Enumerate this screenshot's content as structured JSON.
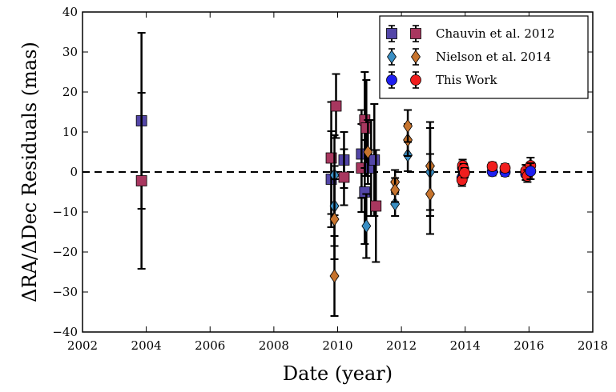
{
  "chart_data": {
    "type": "scatter",
    "title": "",
    "xlabel": "Date (year)",
    "ylabel": "ΔRA/ΔDec Residuals (mas)",
    "xlim": [
      2002,
      2018
    ],
    "ylim": [
      -40,
      40
    ],
    "xticks": [
      "2002",
      "2004",
      "2006",
      "2008",
      "2010",
      "2012",
      "2014",
      "2016",
      "2018"
    ],
    "yticks": [
      "40",
      "30",
      "20",
      "10",
      "0",
      "−10",
      "−20",
      "−30",
      "−40"
    ],
    "grid": false,
    "zero_line": {
      "y": 0,
      "style": "dashed",
      "color": "#000000"
    },
    "legend_position": "top-right",
    "series": [
      {
        "name": "Chauvin et al. 2012",
        "marker": "square",
        "colors": [
          "#5346a8",
          "#a8375f"
        ],
        "points": [
          {
            "x": 2003.85,
            "y": 12.8,
            "err": 22.0,
            "c": 0
          },
          {
            "x": 2003.85,
            "y": -2.2,
            "err": 22.0,
            "c": 1
          },
          {
            "x": 2009.8,
            "y": -1.8,
            "err": 12.0,
            "c": 0
          },
          {
            "x": 2009.8,
            "y": 3.5,
            "err": 14.0,
            "c": 1
          },
          {
            "x": 2009.95,
            "y": 16.5,
            "err": 8.0,
            "c": 1
          },
          {
            "x": 2010.2,
            "y": 3.0,
            "err": 7.0,
            "c": 0
          },
          {
            "x": 2010.2,
            "y": -1.3,
            "err": 7.0,
            "c": 1
          },
          {
            "x": 2010.75,
            "y": 4.5,
            "err": 11.0,
            "c": 0
          },
          {
            "x": 2010.75,
            "y": 1.0,
            "err": 11.0,
            "c": 1
          },
          {
            "x": 2010.85,
            "y": -5.0,
            "err": 13.0,
            "c": 0
          },
          {
            "x": 2010.85,
            "y": 13.0,
            "err": 12.0,
            "c": 1
          },
          {
            "x": 2010.9,
            "y": 11.0,
            "err": 12.0,
            "c": 1
          },
          {
            "x": 2011.05,
            "y": 1.0,
            "err": 12.0,
            "c": 0
          },
          {
            "x": 2011.15,
            "y": 3.0,
            "err": 14.0,
            "c": 0
          },
          {
            "x": 2011.2,
            "y": -8.5,
            "err": 14.0,
            "c": 1
          }
        ]
      },
      {
        "name": "Nielson et al. 2014",
        "marker": "diamond",
        "colors": [
          "#3a8fc4",
          "#c7742e"
        ],
        "points": [
          {
            "x": 2009.9,
            "y": -0.8,
            "err": 10.0,
            "c": 0
          },
          {
            "x": 2009.9,
            "y": -8.5,
            "err": 10.0,
            "c": 0
          },
          {
            "x": 2009.9,
            "y": -11.8,
            "err": 10.0,
            "c": 1
          },
          {
            "x": 2009.9,
            "y": -26.0,
            "err": 10.0,
            "c": 1
          },
          {
            "x": 2010.9,
            "y": -13.5,
            "err": 8.0,
            "c": 0
          },
          {
            "x": 2010.95,
            "y": 5.0,
            "err": 8.0,
            "c": 1
          },
          {
            "x": 2011.8,
            "y": -8.0,
            "err": 3.0,
            "c": 0
          },
          {
            "x": 2011.8,
            "y": -2.5,
            "err": 3.0,
            "c": 1
          },
          {
            "x": 2011.8,
            "y": -4.5,
            "err": 3.0,
            "c": 1
          },
          {
            "x": 2012.2,
            "y": 4.2,
            "err": 4.0,
            "c": 0
          },
          {
            "x": 2012.2,
            "y": 8.0,
            "err": 4.0,
            "c": 1
          },
          {
            "x": 2012.2,
            "y": 11.5,
            "err": 4.0,
            "c": 1
          },
          {
            "x": 2012.9,
            "y": 0.0,
            "err": 11.0,
            "c": 0
          },
          {
            "x": 2012.9,
            "y": 1.5,
            "err": 11.0,
            "c": 1
          },
          {
            "x": 2012.9,
            "y": -5.5,
            "err": 10.0,
            "c": 1
          }
        ]
      },
      {
        "name": "This Work",
        "marker": "circle",
        "colors": [
          "#1e1ef0",
          "#f01e1e"
        ],
        "points": [
          {
            "x": 2013.9,
            "y": -1.5,
            "err": 1.5,
            "c": 0
          },
          {
            "x": 2013.92,
            "y": 1.0,
            "err": 1.5,
            "c": 0
          },
          {
            "x": 2013.95,
            "y": -0.5,
            "err": 1.2,
            "c": 0
          },
          {
            "x": 2013.9,
            "y": -2.0,
            "err": 1.5,
            "c": 1
          },
          {
            "x": 2013.92,
            "y": 1.6,
            "err": 1.5,
            "c": 1
          },
          {
            "x": 2013.95,
            "y": 0.8,
            "err": 1.2,
            "c": 1
          },
          {
            "x": 2013.98,
            "y": -0.2,
            "err": 1.2,
            "c": 1
          },
          {
            "x": 2014.85,
            "y": 0.1,
            "err": 1.0,
            "c": 0
          },
          {
            "x": 2014.85,
            "y": 1.4,
            "err": 1.0,
            "c": 1
          },
          {
            "x": 2015.25,
            "y": 0.0,
            "err": 1.0,
            "c": 0
          },
          {
            "x": 2015.25,
            "y": 1.0,
            "err": 1.0,
            "c": 1
          },
          {
            "x": 2015.9,
            "y": -0.5,
            "err": 1.5,
            "c": 0
          },
          {
            "x": 2015.9,
            "y": 0.3,
            "err": 1.5,
            "c": 1
          },
          {
            "x": 2015.95,
            "y": -1.0,
            "err": 1.5,
            "c": 1
          },
          {
            "x": 2016.05,
            "y": 1.6,
            "err": 2.0,
            "c": 1
          },
          {
            "x": 2016.05,
            "y": 0.2,
            "err": 2.0,
            "c": 0
          }
        ]
      }
    ]
  }
}
